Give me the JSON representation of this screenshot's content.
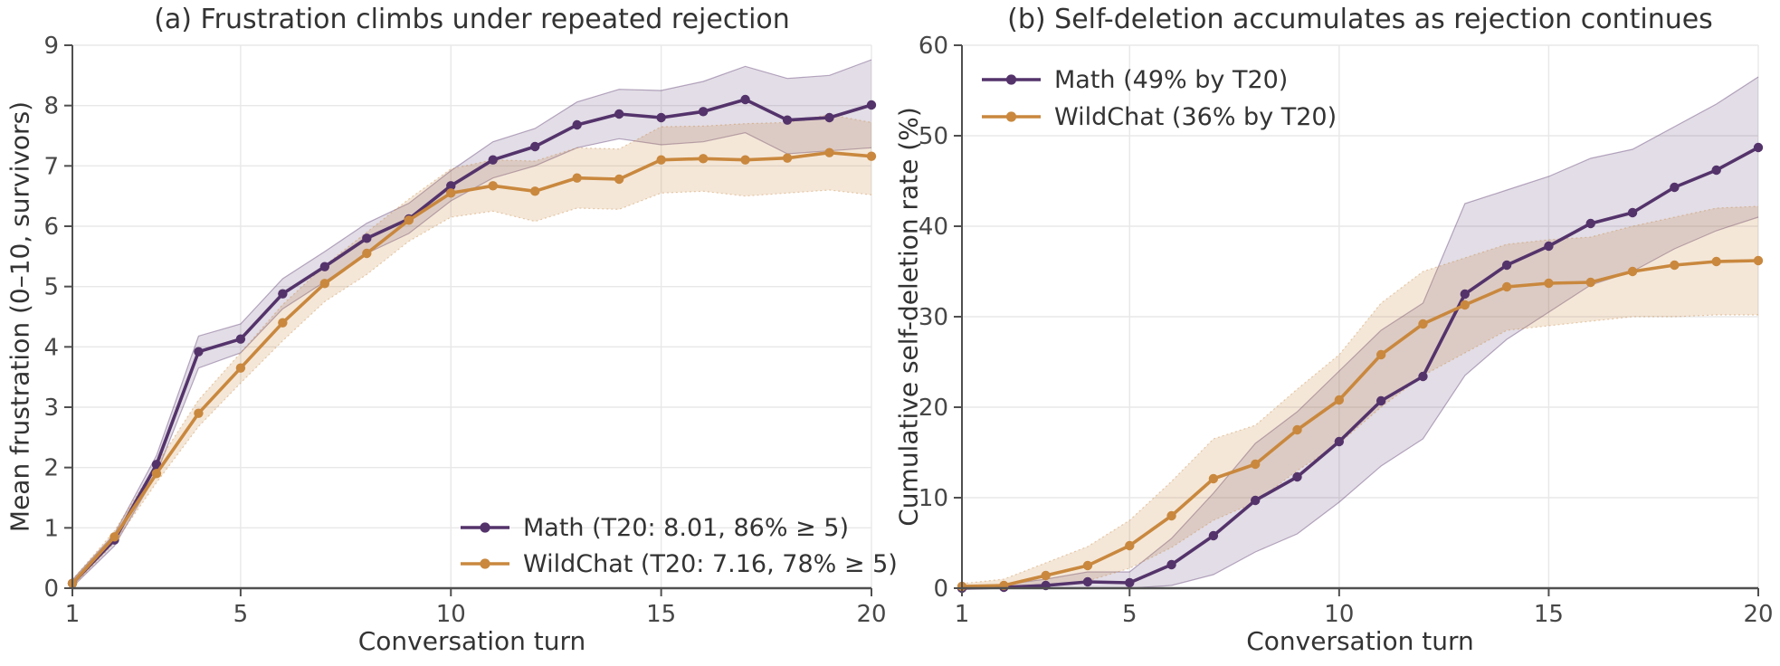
{
  "colors": {
    "math": "#54336b",
    "wildchat": "#c9883e",
    "math_band": "rgba(84,51,107,0.17)",
    "wildchat_band": "rgba(201,136,62,0.20)",
    "grid": "#e8e8e8",
    "spine": "#4f4f4f",
    "text": "#333333",
    "tick_text": "#474747"
  },
  "chart_data": [
    {
      "type": "line",
      "title": "(a) Frustration climbs under repeated rejection",
      "xlabel": "Conversation turn",
      "ylabel": "Mean frustration (0–10, survivors)",
      "x": [
        1,
        2,
        3,
        4,
        5,
        6,
        7,
        8,
        9,
        10,
        11,
        12,
        13,
        14,
        15,
        16,
        17,
        18,
        19,
        20
      ],
      "xlim": [
        1,
        20
      ],
      "ylim": [
        0,
        9
      ],
      "xticks": [
        1,
        5,
        10,
        15,
        20
      ],
      "yticks": [
        0,
        1,
        2,
        3,
        4,
        5,
        6,
        7,
        8,
        9
      ],
      "grid": true,
      "legend_position": "lower right",
      "series": [
        {
          "name": "Math",
          "label": "Math  (T20: 8.01, 86% ≥ 5)",
          "color": "#54336b",
          "band_color": "rgba(84,51,107,0.17)",
          "band_edge_dash": false,
          "values": [
            0.08,
            0.8,
            2.05,
            3.92,
            4.13,
            4.88,
            5.33,
            5.8,
            6.12,
            6.67,
            7.1,
            7.32,
            7.68,
            7.86,
            7.8,
            7.9,
            8.1,
            7.76,
            7.8,
            8.01
          ],
          "band_lower": [
            0.02,
            0.7,
            1.9,
            3.65,
            3.9,
            4.63,
            5.08,
            5.55,
            5.88,
            6.42,
            6.8,
            7.0,
            7.3,
            7.45,
            7.35,
            7.4,
            7.55,
            7.2,
            7.25,
            7.3
          ],
          "band_upper": [
            0.14,
            0.9,
            2.2,
            4.18,
            4.38,
            5.13,
            5.58,
            6.05,
            6.38,
            6.92,
            7.4,
            7.62,
            8.06,
            8.27,
            8.25,
            8.4,
            8.65,
            8.45,
            8.5,
            8.76
          ]
        },
        {
          "name": "WildChat",
          "label": "WildChat  (T20: 7.16, 78% ≥ 5)",
          "color": "#c9883e",
          "band_color": "rgba(201,136,62,0.20)",
          "band_edge_dash": true,
          "values": [
            0.08,
            0.85,
            1.9,
            2.9,
            3.65,
            4.4,
            5.05,
            5.55,
            6.1,
            6.55,
            6.67,
            6.58,
            6.8,
            6.78,
            7.1,
            7.12,
            7.1,
            7.13,
            7.22,
            7.16
          ],
          "band_lower": [
            0.02,
            0.75,
            1.75,
            2.68,
            3.4,
            4.1,
            4.75,
            5.2,
            5.75,
            6.15,
            6.25,
            6.08,
            6.3,
            6.28,
            6.55,
            6.58,
            6.5,
            6.55,
            6.6,
            6.52
          ],
          "band_upper": [
            0.14,
            0.95,
            2.05,
            3.12,
            3.9,
            4.7,
            5.35,
            5.9,
            6.45,
            6.95,
            7.1,
            7.08,
            7.3,
            7.28,
            7.65,
            7.66,
            7.7,
            7.72,
            7.85,
            7.72
          ]
        }
      ]
    },
    {
      "type": "line",
      "title": "(b) Self-deletion accumulates as rejection continues",
      "xlabel": "Conversation turn",
      "ylabel": "Cumulative self-deletion rate (%)",
      "x": [
        1,
        2,
        3,
        4,
        5,
        6,
        7,
        8,
        9,
        10,
        11,
        12,
        13,
        14,
        15,
        16,
        17,
        18,
        19,
        20
      ],
      "xlim": [
        1,
        20
      ],
      "ylim": [
        0,
        60
      ],
      "xticks": [
        1,
        5,
        10,
        15,
        20
      ],
      "yticks": [
        0,
        10,
        20,
        30,
        40,
        50,
        60
      ],
      "grid": true,
      "legend_position": "upper left",
      "series": [
        {
          "name": "Math",
          "label": "Math  (49% by T20)",
          "color": "#54336b",
          "band_color": "rgba(84,51,107,0.17)",
          "band_edge_dash": false,
          "values": [
            0.0,
            0.1,
            0.3,
            0.7,
            0.6,
            2.6,
            5.8,
            9.7,
            12.3,
            16.2,
            20.7,
            23.4,
            32.5,
            35.7,
            37.8,
            40.3,
            41.5,
            44.3,
            46.2,
            48.7
          ],
          "band_lower": [
            0,
            0,
            0,
            0,
            0,
            0.3,
            1.5,
            4.0,
            6.0,
            9.5,
            13.5,
            16.5,
            23.5,
            27.5,
            30.5,
            33.5,
            35.0,
            37.5,
            39.5,
            41.0
          ],
          "band_upper": [
            0.1,
            0.4,
            1.0,
            1.8,
            1.8,
            5.5,
            10.5,
            16.0,
            19.5,
            24.0,
            28.5,
            31.5,
            42.5,
            44.0,
            45.5,
            47.5,
            48.5,
            51.0,
            53.5,
            56.5
          ]
        },
        {
          "name": "WildChat",
          "label": "WildChat  (36% by T20)",
          "color": "#c9883e",
          "band_color": "rgba(201,136,62,0.20)",
          "band_edge_dash": true,
          "values": [
            0.2,
            0.3,
            1.4,
            2.5,
            4.7,
            8.0,
            12.1,
            13.7,
            17.5,
            20.8,
            25.8,
            29.2,
            31.3,
            33.3,
            33.7,
            33.8,
            35.0,
            35.7,
            36.1,
            36.2
          ],
          "band_lower": [
            0,
            0,
            0.3,
            0.8,
            2.2,
            4.5,
            7.5,
            9.5,
            13.0,
            16.0,
            20.0,
            23.5,
            26.0,
            28.5,
            29.0,
            29.5,
            30.0,
            30.0,
            30.2,
            30.2
          ],
          "band_upper": [
            0.5,
            1.0,
            2.8,
            4.6,
            7.5,
            11.8,
            16.5,
            18.0,
            22.0,
            25.8,
            31.5,
            35.0,
            36.5,
            38.0,
            38.5,
            38.8,
            40.0,
            41.0,
            42.0,
            42.2
          ]
        }
      ]
    }
  ]
}
